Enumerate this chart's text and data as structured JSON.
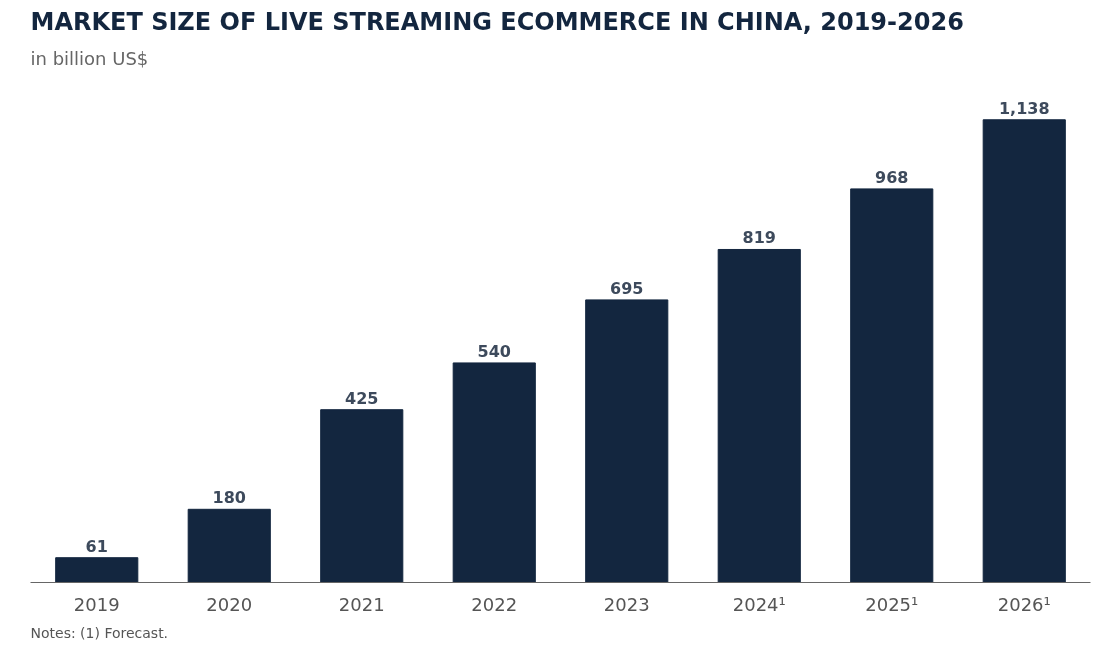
{
  "chart_data": {
    "type": "bar",
    "title": "MARKET SIZE OF LIVE STREAMING ECOMMERCE IN CHINA, 2019-2026",
    "subtitle": "in billion US$",
    "categories": [
      "2019",
      "2020",
      "2021",
      "2022",
      "2023",
      "2024¹",
      "2025¹",
      "2026¹"
    ],
    "values": [
      61,
      180,
      425,
      540,
      695,
      819,
      968,
      1138
    ],
    "value_labels": [
      "61",
      "180",
      "425",
      "540",
      "695",
      "819",
      "968",
      "1,138"
    ],
    "color": "#13263f",
    "grid": false,
    "annotations": [
      "Notes: (1) Forecast."
    ]
  }
}
